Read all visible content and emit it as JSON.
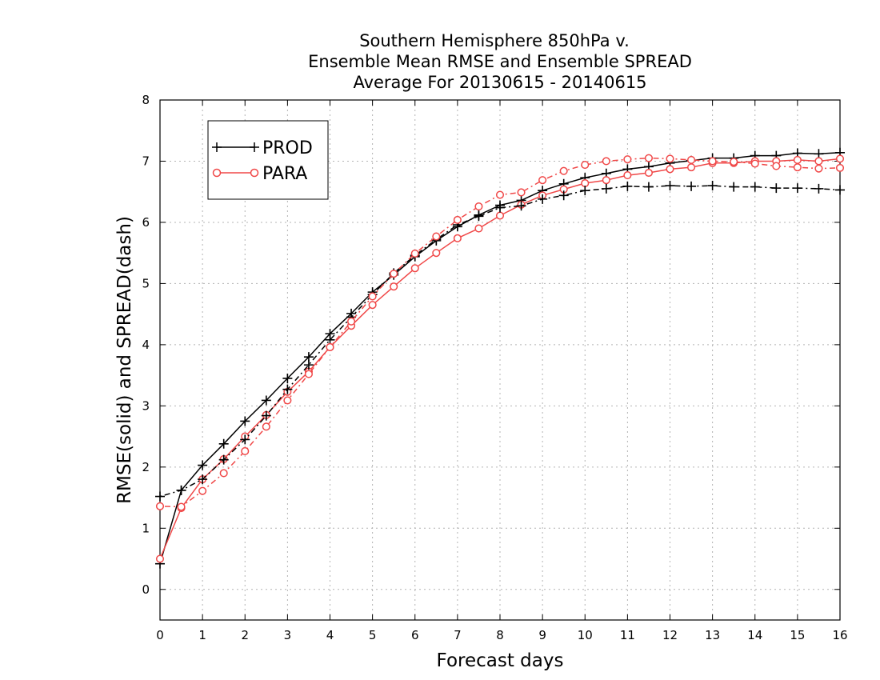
{
  "chart_data": {
    "type": "line",
    "title": [
      "Southern Hemisphere 850hPa v.",
      "Ensemble Mean RMSE and Ensemble SPREAD",
      "Average For 20130615 - 20140615"
    ],
    "xlabel": "Forecast days",
    "ylabel": "RMSE(solid) and SPREAD(dash)",
    "xlim": [
      0,
      16
    ],
    "ylim": [
      -0.5,
      8
    ],
    "xticks": [
      "0",
      "1",
      "2",
      "3",
      "4",
      "5",
      "6",
      "7",
      "8",
      "9",
      "10",
      "11",
      "12",
      "13",
      "14",
      "15",
      "16"
    ],
    "yticks": [
      "0",
      "1",
      "2",
      "3",
      "4",
      "5",
      "6",
      "7",
      "8"
    ],
    "grid": true,
    "legend_position": "top-left",
    "x": [
      0,
      0.5,
      1,
      1.5,
      2,
      2.5,
      3,
      3.5,
      4,
      4.5,
      5,
      5.5,
      6,
      6.5,
      7,
      7.5,
      8,
      8.5,
      9,
      9.5,
      10,
      10.5,
      11,
      11.5,
      12,
      12.5,
      13,
      13.5,
      14,
      14.5,
      15,
      15.5,
      16
    ],
    "series": [
      {
        "name": "PROD",
        "metric": "RMSE",
        "line_style": "solid",
        "marker": "plus",
        "color": "#000000",
        "values": [
          0.42,
          1.62,
          2.03,
          2.38,
          2.75,
          3.09,
          3.45,
          3.8,
          4.18,
          4.51,
          4.86,
          5.14,
          5.44,
          5.7,
          5.93,
          6.12,
          6.28,
          6.36,
          6.52,
          6.63,
          6.73,
          6.8,
          6.87,
          6.91,
          6.97,
          7.01,
          7.05,
          7.05,
          7.09,
          7.09,
          7.13,
          7.12,
          7.14
        ]
      },
      {
        "name": "PARA",
        "metric": "RMSE",
        "line_style": "solid",
        "marker": "circle",
        "color": "#f04848",
        "values": [
          0.5,
          1.33,
          1.8,
          2.13,
          2.5,
          2.85,
          3.23,
          3.56,
          3.96,
          4.31,
          4.65,
          4.95,
          5.25,
          5.5,
          5.74,
          5.9,
          6.11,
          6.29,
          6.44,
          6.54,
          6.64,
          6.69,
          6.77,
          6.81,
          6.87,
          6.9,
          6.97,
          6.97,
          7.0,
          7.0,
          7.02,
          7.0,
          7.04
        ]
      },
      {
        "name": "PROD",
        "metric": "SPREAD",
        "line_style": "dash",
        "marker": "plus",
        "color": "#000000",
        "values": [
          1.52,
          1.62,
          1.8,
          2.12,
          2.45,
          2.84,
          3.27,
          3.67,
          4.08,
          4.45,
          4.82,
          5.17,
          5.46,
          5.72,
          5.96,
          6.1,
          6.24,
          6.27,
          6.38,
          6.44,
          6.52,
          6.55,
          6.59,
          6.58,
          6.6,
          6.59,
          6.6,
          6.58,
          6.58,
          6.56,
          6.56,
          6.55,
          6.53
        ]
      },
      {
        "name": "PARA",
        "metric": "SPREAD",
        "line_style": "dash",
        "marker": "circle",
        "color": "#f04848",
        "values": [
          1.36,
          1.35,
          1.61,
          1.9,
          2.26,
          2.66,
          3.09,
          3.52,
          3.96,
          4.38,
          4.79,
          5.16,
          5.49,
          5.77,
          6.04,
          6.26,
          6.45,
          6.49,
          6.69,
          6.84,
          6.94,
          7.0,
          7.03,
          7.05,
          7.04,
          7.02,
          7.0,
          6.99,
          6.96,
          6.92,
          6.9,
          6.88,
          6.89
        ]
      }
    ]
  }
}
